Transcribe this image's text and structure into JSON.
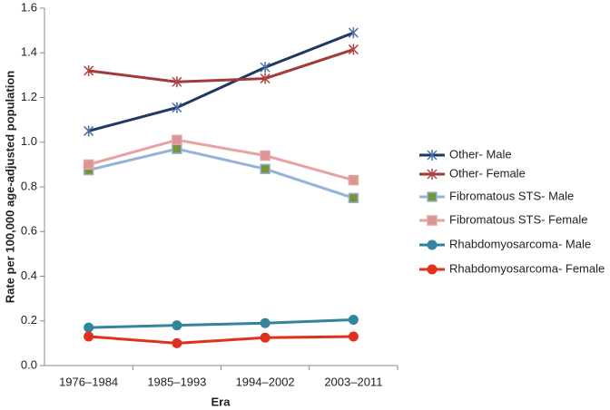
{
  "chart_data": {
    "type": "line",
    "x_label": "Era",
    "y_label": "Rate per 100,000 age-adjusted population",
    "categories": [
      "1976–1984",
      "1985–1993",
      "1994–2002",
      "2003–2011"
    ],
    "ylim": [
      0,
      1.6
    ],
    "yticks": [
      {
        "value": 0,
        "label": "0.0"
      },
      {
        "value": 0.2,
        "label": "0.2"
      },
      {
        "value": 0.4,
        "label": "0.4"
      },
      {
        "value": 0.6,
        "label": "0.6"
      },
      {
        "value": 0.8,
        "label": "0.8"
      },
      {
        "value": 1,
        "label": "1.0"
      },
      {
        "value": 1.2,
        "label": "1.2"
      },
      {
        "value": 1.4,
        "label": "1.4"
      },
      {
        "value": 1.6,
        "label": "1.6"
      }
    ],
    "legend": "right",
    "series": [
      {
        "name": "Other- Male",
        "color": "#1f3864",
        "marker": "asterisk",
        "marker_color": "#4f6fa8",
        "values": [
          1.05,
          1.155,
          1.335,
          1.49
        ]
      },
      {
        "name": "Other- Female",
        "color": "#a33a3a",
        "marker": "asterisk",
        "marker_color": "#b04646",
        "values": [
          1.32,
          1.27,
          1.285,
          1.415
        ]
      },
      {
        "name": "Fibromatous STS- Male",
        "color": "#95b3d7",
        "marker": "square",
        "marker_color": "#77933c",
        "values": [
          0.875,
          0.97,
          0.88,
          0.75
        ]
      },
      {
        "name": "Fibromatous STS- Female",
        "color": "#e6a3a1",
        "marker": "square",
        "marker_color": "#d99694",
        "values": [
          0.9,
          1.01,
          0.94,
          0.83
        ]
      },
      {
        "name": "Rhabdomyosarcoma- Male",
        "color": "#31859c",
        "marker": "circle",
        "marker_color": "#31859c",
        "values": [
          0.17,
          0.18,
          0.19,
          0.205
        ]
      },
      {
        "name": "Rhabdomyosarcoma- Female",
        "color": "#e0301e",
        "marker": "circle",
        "marker_color": "#e0301e",
        "values": [
          0.13,
          0.1,
          0.125,
          0.13
        ]
      }
    ]
  }
}
